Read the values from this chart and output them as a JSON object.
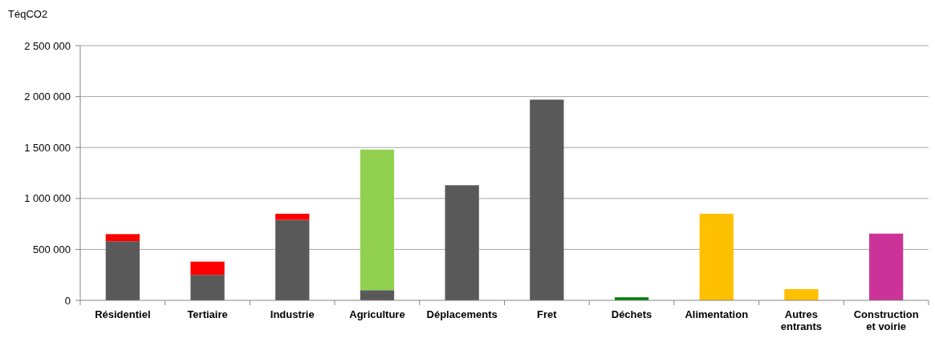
{
  "chart_data": {
    "type": "bar",
    "stacked": true,
    "ylabel": "TéqCO2",
    "categories": [
      "Résidentiel",
      "Tertiaire",
      "Industrie",
      "Agriculture",
      "Déplacements",
      "Fret",
      "Déchets",
      "Alimentation",
      "Autres entrants",
      "Construction et voirie"
    ],
    "series": [
      {
        "color": "#595959",
        "values": [
          580000,
          250000,
          790000,
          100000,
          1130000,
          1970000,
          null,
          null,
          null,
          null
        ]
      },
      {
        "color": "#ff0000",
        "values": [
          70000,
          130000,
          60000,
          null,
          null,
          null,
          null,
          null,
          null,
          null
        ]
      },
      {
        "color": "#92d050",
        "values": [
          null,
          null,
          null,
          1380000,
          null,
          null,
          null,
          null,
          null,
          null
        ]
      },
      {
        "color": "#008000",
        "values": [
          null,
          null,
          null,
          null,
          null,
          null,
          30000,
          null,
          null,
          null
        ]
      },
      {
        "color": "#ffc000",
        "values": [
          null,
          null,
          null,
          null,
          null,
          null,
          null,
          850000,
          110000,
          null
        ]
      },
      {
        "color": "#cc3399",
        "values": [
          null,
          null,
          null,
          null,
          null,
          null,
          null,
          null,
          null,
          655000
        ]
      }
    ],
    "ylim": [
      0,
      2500000
    ],
    "yticks": [
      0,
      {
        "value": 500000,
        "label": "500 000"
      },
      {
        "value": 1000000,
        "label": "1 000 000"
      },
      {
        "value": 1500000,
        "label": "1 500 000"
      },
      {
        "value": 2000000,
        "label": "2 000 000"
      },
      {
        "value": 2500000,
        "label": "2 500 000"
      }
    ],
    "grid": "y"
  }
}
